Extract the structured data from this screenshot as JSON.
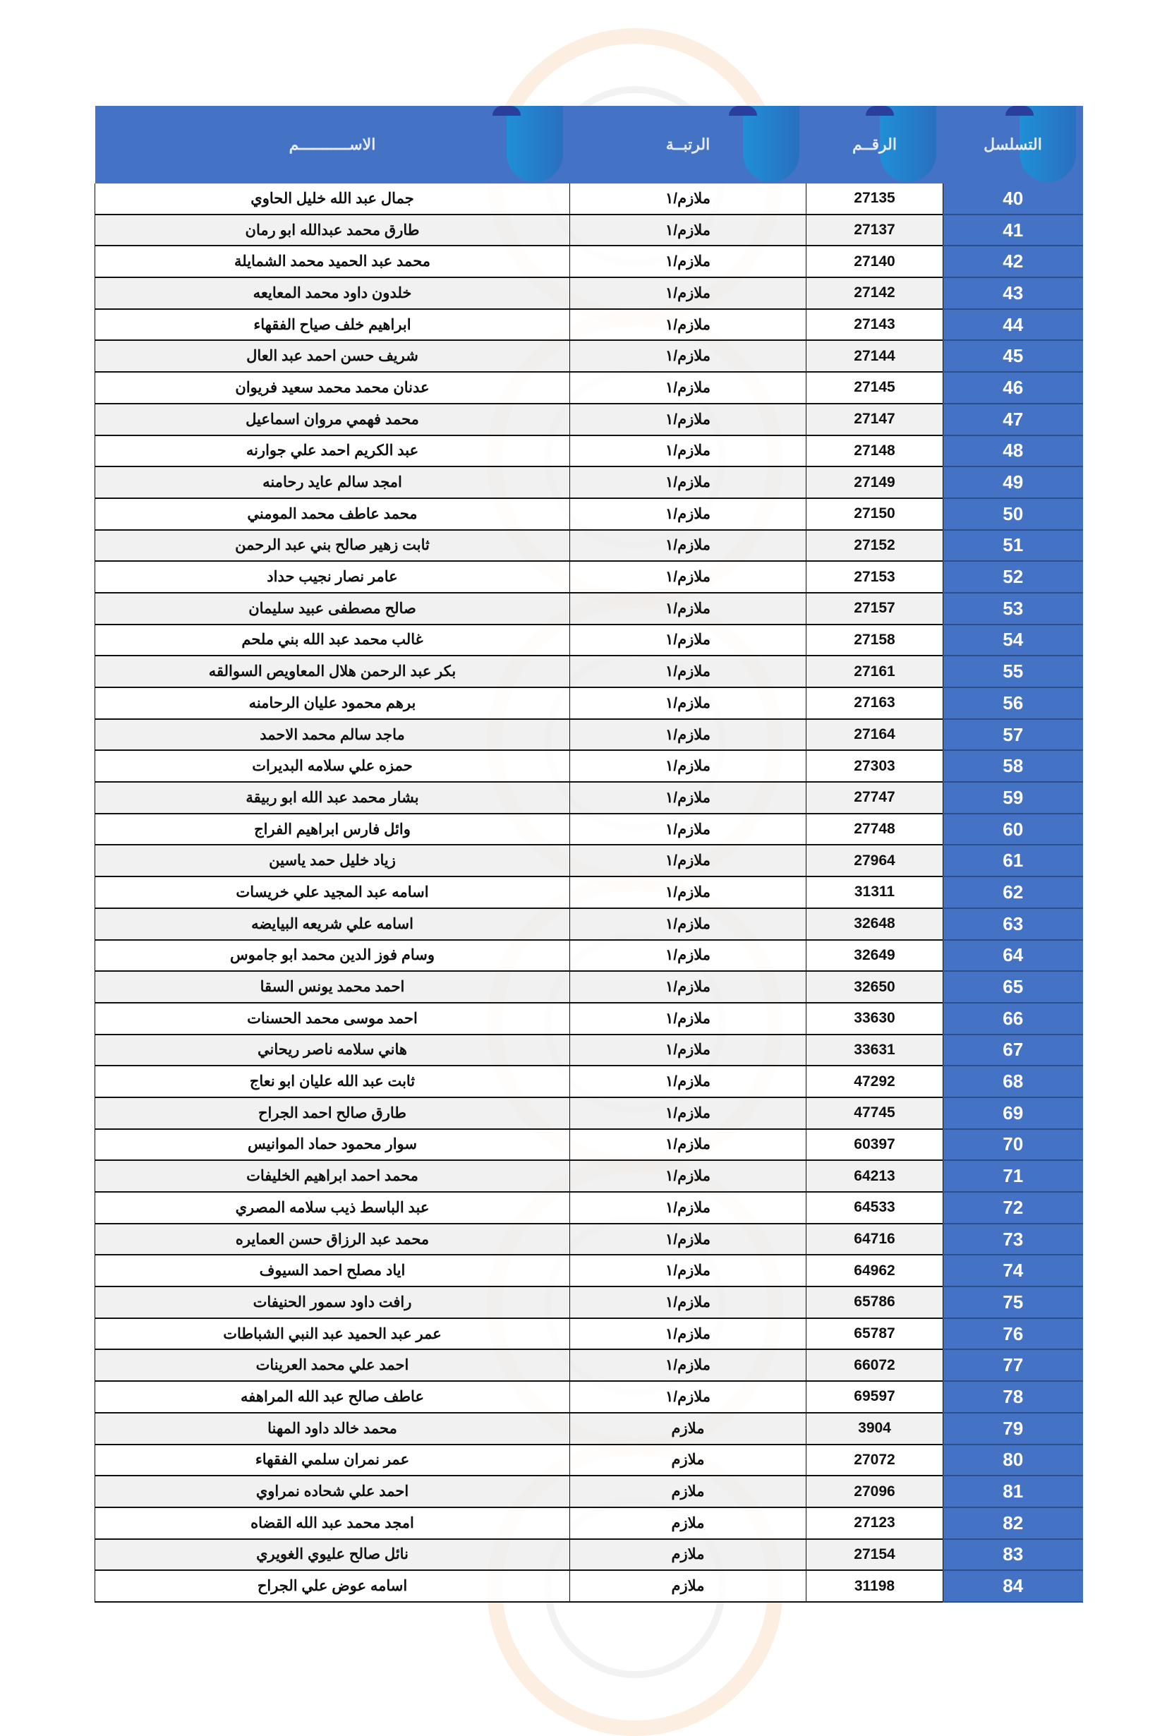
{
  "header": {
    "seq": "التسلسل",
    "number": "الرقــم",
    "rank": "الرتبــة",
    "name": "الاســـــــــــم"
  },
  "colors": {
    "header_bg": "#4472c4",
    "seq_bg": "#4472c4",
    "alt_row": "#eeeeee"
  },
  "rows": [
    {
      "seq": "40",
      "number": "27135",
      "rank": "ملازم/١",
      "name": "جمال عبد الله خليل الحاوي"
    },
    {
      "seq": "41",
      "number": "27137",
      "rank": "ملازم/١",
      "name": "طارق محمد عبدالله ابو رمان"
    },
    {
      "seq": "42",
      "number": "27140",
      "rank": "ملازم/١",
      "name": "محمد عبد الحميد محمد الشمايلة"
    },
    {
      "seq": "43",
      "number": "27142",
      "rank": "ملازم/١",
      "name": "خلدون داود محمد المعايعه"
    },
    {
      "seq": "44",
      "number": "27143",
      "rank": "ملازم/١",
      "name": "ابراهيم خلف صياح الفقهاء"
    },
    {
      "seq": "45",
      "number": "27144",
      "rank": "ملازم/١",
      "name": "شريف حسن احمد عبد العال"
    },
    {
      "seq": "46",
      "number": "27145",
      "rank": "ملازم/١",
      "name": "عدنان محمد محمد سعيد فريوان"
    },
    {
      "seq": "47",
      "number": "27147",
      "rank": "ملازم/١",
      "name": "محمد فهمي مروان اسماعيل"
    },
    {
      "seq": "48",
      "number": "27148",
      "rank": "ملازم/١",
      "name": "عبد الكريم احمد علي جوارنه"
    },
    {
      "seq": "49",
      "number": "27149",
      "rank": "ملازم/١",
      "name": "امجد سالم عايد رحامنه"
    },
    {
      "seq": "50",
      "number": "27150",
      "rank": "ملازم/١",
      "name": "محمد عاطف محمد المومني"
    },
    {
      "seq": "51",
      "number": "27152",
      "rank": "ملازم/١",
      "name": "ثابت زهير صالح بني عبد الرحمن"
    },
    {
      "seq": "52",
      "number": "27153",
      "rank": "ملازم/١",
      "name": "عامر نصار نجيب حداد"
    },
    {
      "seq": "53",
      "number": "27157",
      "rank": "ملازم/١",
      "name": "صالح مصطفى عبيد سليمان"
    },
    {
      "seq": "54",
      "number": "27158",
      "rank": "ملازم/١",
      "name": "غالب محمد عبد الله بني ملحم"
    },
    {
      "seq": "55",
      "number": "27161",
      "rank": "ملازم/١",
      "name": "بكر عبد الرحمن هلال المعاويص السوالقه"
    },
    {
      "seq": "56",
      "number": "27163",
      "rank": "ملازم/١",
      "name": "برهم محمود عليان الرحامنه"
    },
    {
      "seq": "57",
      "number": "27164",
      "rank": "ملازم/١",
      "name": "ماجد سالم محمد الاحمد"
    },
    {
      "seq": "58",
      "number": "27303",
      "rank": "ملازم/١",
      "name": "حمزه علي سلامه البديرات"
    },
    {
      "seq": "59",
      "number": "27747",
      "rank": "ملازم/١",
      "name": "بشار محمد عبد الله ابو ربيقة"
    },
    {
      "seq": "60",
      "number": "27748",
      "rank": "ملازم/١",
      "name": "وائل فارس ابراهيم الفراج"
    },
    {
      "seq": "61",
      "number": "27964",
      "rank": "ملازم/١",
      "name": "زياد خليل حمد ياسين"
    },
    {
      "seq": "62",
      "number": "31311",
      "rank": "ملازم/١",
      "name": "اسامه عبد المجيد علي خريسات"
    },
    {
      "seq": "63",
      "number": "32648",
      "rank": "ملازم/١",
      "name": "اسامه علي شريعه البيايضه"
    },
    {
      "seq": "64",
      "number": "32649",
      "rank": "ملازم/١",
      "name": "وسام فوز الدين محمد ابو جاموس"
    },
    {
      "seq": "65",
      "number": "32650",
      "rank": "ملازم/١",
      "name": "احمد محمد يونس السقا"
    },
    {
      "seq": "66",
      "number": "33630",
      "rank": "ملازم/١",
      "name": "احمد موسى محمد الحسنات"
    },
    {
      "seq": "67",
      "number": "33631",
      "rank": "ملازم/١",
      "name": "هاني سلامه ناصر ريحاني"
    },
    {
      "seq": "68",
      "number": "47292",
      "rank": "ملازم/١",
      "name": "ثابت عبد الله عليان ابو نعاج"
    },
    {
      "seq": "69",
      "number": "47745",
      "rank": "ملازم/١",
      "name": "طارق صالح احمد الجراح"
    },
    {
      "seq": "70",
      "number": "60397",
      "rank": "ملازم/١",
      "name": "سوار محمود حماد الموانيس"
    },
    {
      "seq": "71",
      "number": "64213",
      "rank": "ملازم/١",
      "name": "محمد احمد ابراهيم الخليفات"
    },
    {
      "seq": "72",
      "number": "64533",
      "rank": "ملازم/١",
      "name": "عبد الباسط ذيب سلامه المصري"
    },
    {
      "seq": "73",
      "number": "64716",
      "rank": "ملازم/١",
      "name": "محمد عبد الرزاق حسن العمايره"
    },
    {
      "seq": "74",
      "number": "64962",
      "rank": "ملازم/١",
      "name": "اياد مصلح احمد السيوف"
    },
    {
      "seq": "75",
      "number": "65786",
      "rank": "ملازم/١",
      "name": "رافت داود سمور الحنيفات"
    },
    {
      "seq": "76",
      "number": "65787",
      "rank": "ملازم/١",
      "name": "عمر عبد الحميد عبد النبي الشباطات"
    },
    {
      "seq": "77",
      "number": "66072",
      "rank": "ملازم/١",
      "name": "احمد علي  محمد العرينات"
    },
    {
      "seq": "78",
      "number": "69597",
      "rank": "ملازم/١",
      "name": "عاطف صالح عبد الله المراهفه"
    },
    {
      "seq": "79",
      "number": "3904",
      "rank": "ملازم",
      "name": "محمد خالد داود المهنا"
    },
    {
      "seq": "80",
      "number": "27072",
      "rank": "ملازم",
      "name": "عمر نمران سلمي الفقهاء"
    },
    {
      "seq": "81",
      "number": "27096",
      "rank": "ملازم",
      "name": "احمد علي شحاده نمراوي"
    },
    {
      "seq": "82",
      "number": "27123",
      "rank": "ملازم",
      "name": "امجد محمد عبد الله القضاه"
    },
    {
      "seq": "83",
      "number": "27154",
      "rank": "ملازم",
      "name": "نائل صالح عليوي الغويري"
    },
    {
      "seq": "84",
      "number": "31198",
      "rank": "ملازم",
      "name": "اسامه عوض علي الجراح"
    }
  ]
}
